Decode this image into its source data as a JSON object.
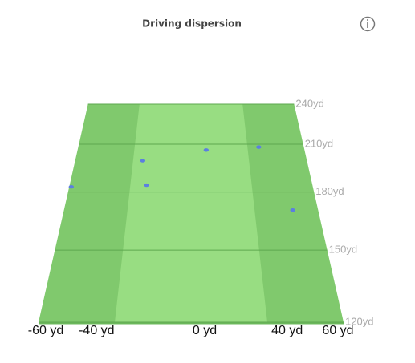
{
  "chart_data": {
    "type": "scatter",
    "title": "Driving dispersion",
    "x": [
      8,
      36,
      -25,
      -59,
      -22,
      48
    ],
    "y": [
      206,
      208,
      199,
      183,
      184,
      170
    ],
    "color": "#5b7fe0",
    "xlim": [
      -60,
      60
    ],
    "ylim": [
      120,
      240
    ],
    "xticks": [
      {
        "value": -60,
        "label": "-60 yd"
      },
      {
        "value": -40,
        "label": "-40 yd"
      },
      {
        "value": 0,
        "label": "0 yd"
      },
      {
        "value": 40,
        "label": "40 yd"
      },
      {
        "value": 60,
        "label": "60 yd"
      }
    ],
    "yticks": [
      {
        "value": 120,
        "label": "120yd"
      },
      {
        "value": 150,
        "label": "150yd"
      },
      {
        "value": 180,
        "label": "180yd"
      },
      {
        "value": 210,
        "label": "210yd"
      },
      {
        "value": 240,
        "label": "240yd"
      }
    ],
    "fairway_xlim": [
      -30,
      30
    ],
    "grid": true
  }
}
